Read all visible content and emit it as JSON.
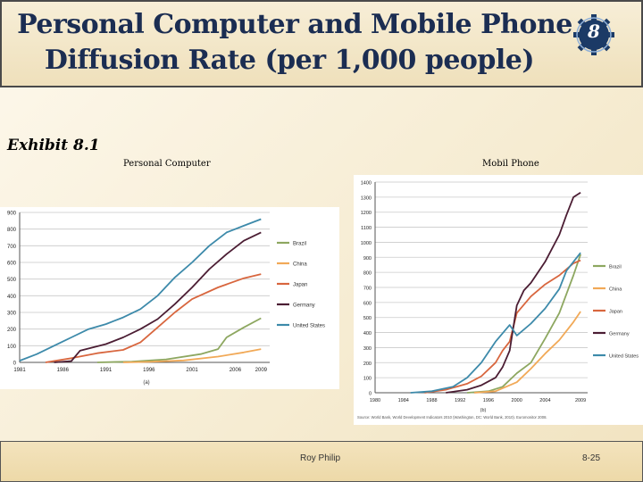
{
  "slide": {
    "title_line1": "Personal Computer and Mobile Phone",
    "title_line2": "Diffusion Rate (per 1,000 people)",
    "badge": "8",
    "exhibit_label": "Exhibit 8.1",
    "footer_author": "Roy Philip",
    "footer_page": "8-25"
  },
  "colors": {
    "Brazil": "#8da760",
    "China": "#f1a957",
    "Japan": "#d8663e",
    "Germany": "#4b1d33",
    "United States": "#3d8aaa",
    "title": "#1b2d52",
    "badge": "#1b3a66"
  },
  "chart_data": [
    {
      "type": "line",
      "title": "Personal Computer",
      "caption": "(a)",
      "xlim": [
        1981,
        2010
      ],
      "ylim": [
        0,
        900
      ],
      "xticks": [
        1981,
        1986,
        1991,
        1996,
        2001,
        2006,
        2009
      ],
      "yticks": [
        0,
        100,
        200,
        300,
        400,
        500,
        600,
        700,
        800,
        900
      ],
      "grid": true,
      "legend": "right",
      "series": [
        {
          "name": "Brazil",
          "x": [
            1990,
            1994,
            1998,
            2002,
            2004,
            2005,
            2007,
            2009
          ],
          "y": [
            0,
            5,
            18,
            50,
            80,
            150,
            210,
            265
          ]
        },
        {
          "name": "China",
          "x": [
            1993,
            1996,
            2000,
            2004,
            2007,
            2009
          ],
          "y": [
            0,
            3,
            12,
            35,
            60,
            80
          ]
        },
        {
          "name": "Japan",
          "x": [
            1984,
            1987,
            1990,
            1993,
            1995,
            1997,
            1999,
            2001,
            2004,
            2007,
            2009
          ],
          "y": [
            0,
            25,
            55,
            75,
            120,
            210,
            300,
            380,
            450,
            505,
            530
          ]
        },
        {
          "name": "Germany",
          "x": [
            1985,
            1987,
            1988,
            1991,
            1993,
            1995,
            1997,
            1999,
            2001,
            2003,
            2005,
            2007,
            2009
          ],
          "y": [
            0,
            8,
            70,
            110,
            150,
            200,
            260,
            350,
            450,
            560,
            650,
            730,
            780
          ]
        },
        {
          "name": "United States",
          "x": [
            1981,
            1983,
            1985,
            1987,
            1989,
            1991,
            1993,
            1995,
            1997,
            1999,
            2001,
            2003,
            2005,
            2007,
            2009
          ],
          "y": [
            10,
            50,
            100,
            150,
            200,
            230,
            270,
            320,
            400,
            510,
            600,
            700,
            780,
            820,
            860
          ]
        }
      ]
    },
    {
      "type": "line",
      "title": "Mobil Phone",
      "caption": "(b)",
      "source": "Source: World Bank, World Development Indicators 2010 (Washington, DC: World Bank, 2010). Euromonitor 2008.",
      "xlim": [
        1980,
        2010
      ],
      "ylim": [
        0,
        1400
      ],
      "xticks": [
        1980,
        1984,
        1988,
        1992,
        1996,
        2000,
        2004,
        2009
      ],
      "yticks": [
        0,
        100,
        200,
        300,
        400,
        500,
        600,
        700,
        800,
        900,
        1000,
        1100,
        1200,
        1300,
        1400
      ],
      "grid": true,
      "legend": "right",
      "series": [
        {
          "name": "Brazil",
          "x": [
            1993,
            1996,
            1998,
            2000,
            2002,
            2004,
            2006,
            2008,
            2009
          ],
          "y": [
            0,
            10,
            40,
            130,
            200,
            360,
            530,
            780,
            920
          ]
        },
        {
          "name": "China",
          "x": [
            1994,
            1997,
            2000,
            2002,
            2004,
            2006,
            2008,
            2009
          ],
          "y": [
            0,
            10,
            70,
            160,
            260,
            350,
            470,
            540
          ]
        },
        {
          "name": "Japan",
          "x": [
            1987,
            1990,
            1993,
            1995,
            1997,
            1998,
            1999,
            2000,
            2002,
            2004,
            2006,
            2008,
            2009
          ],
          "y": [
            0,
            20,
            60,
            110,
            200,
            280,
            340,
            530,
            640,
            720,
            780,
            860,
            880
          ]
        },
        {
          "name": "Germany",
          "x": [
            1990,
            1993,
            1995,
            1997,
            1998,
            1999,
            2000,
            2001,
            2002,
            2004,
            2006,
            2007,
            2008,
            2009
          ],
          "y": [
            0,
            20,
            50,
            100,
            170,
            280,
            580,
            680,
            730,
            870,
            1050,
            1180,
            1300,
            1330
          ]
        },
        {
          "name": "United States",
          "x": [
            1985,
            1988,
            1991,
            1993,
            1995,
            1997,
            1999,
            2000,
            2002,
            2004,
            2006,
            2007,
            2008,
            2009
          ],
          "y": [
            0,
            10,
            40,
            100,
            200,
            340,
            450,
            380,
            460,
            560,
            690,
            810,
            870,
            930
          ]
        }
      ]
    }
  ]
}
